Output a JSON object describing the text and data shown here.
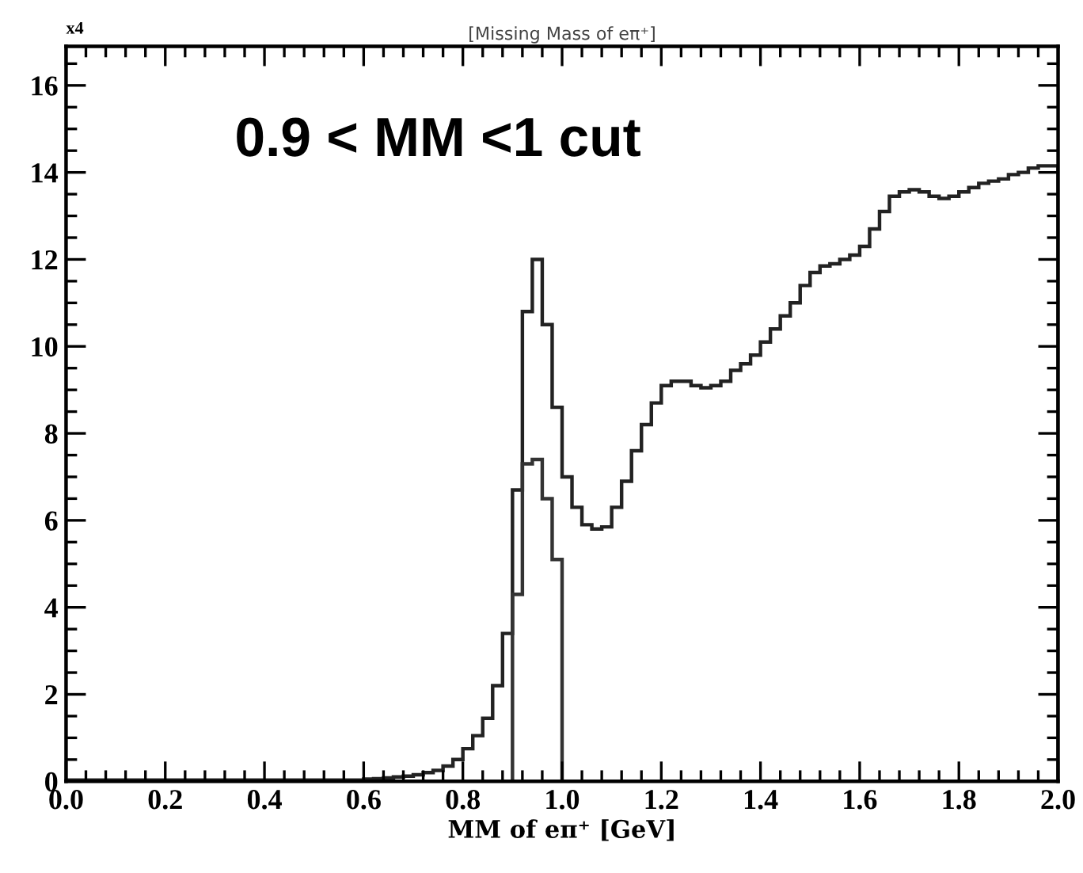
{
  "chart_data": {
    "type": "histogram",
    "title": "[Missing Mass of eπ⁺]",
    "xlabel": "MM of eπ⁺ [GeV]",
    "annotations": [
      "0.9 < MM <1 cut",
      "x4"
    ],
    "bins": [
      0.0,
      0.02,
      0.04,
      0.06,
      0.08,
      0.1,
      0.12,
      0.14,
      0.16,
      0.18,
      0.2,
      0.22,
      0.24,
      0.26,
      0.28,
      0.3,
      0.32,
      0.34,
      0.36,
      0.38,
      0.4,
      0.42,
      0.44,
      0.46,
      0.48,
      0.5,
      0.52,
      0.54,
      0.56,
      0.58,
      0.6,
      0.62,
      0.64,
      0.66,
      0.68,
      0.7,
      0.72,
      0.74,
      0.76,
      0.78,
      0.8,
      0.82,
      0.84,
      0.86,
      0.88,
      0.9,
      0.92,
      0.94,
      0.96,
      0.98,
      1.0,
      1.02,
      1.04,
      1.06,
      1.08,
      1.1,
      1.12,
      1.14,
      1.16,
      1.18,
      1.2,
      1.22,
      1.24,
      1.26,
      1.28,
      1.3,
      1.32,
      1.34,
      1.36,
      1.38,
      1.4,
      1.42,
      1.44,
      1.46,
      1.48,
      1.5,
      1.52,
      1.54,
      1.56,
      1.58,
      1.6,
      1.62,
      1.64,
      1.66,
      1.68,
      1.7,
      1.72,
      1.74,
      1.76,
      1.78,
      1.8,
      1.82,
      1.84,
      1.86,
      1.88,
      1.9,
      1.92,
      1.94,
      1.96,
      1.98,
      2.0
    ],
    "series": [
      {
        "color": "#222222",
        "values": [
          0.03,
          0.03,
          0.03,
          0.03,
          0.03,
          0.03,
          0.03,
          0.03,
          0.03,
          0.03,
          0.03,
          0.03,
          0.03,
          0.03,
          0.03,
          0.03,
          0.03,
          0.03,
          0.03,
          0.03,
          0.03,
          0.03,
          0.03,
          0.03,
          0.03,
          0.03,
          0.03,
          0.03,
          0.03,
          0.03,
          0.05,
          0.06,
          0.08,
          0.1,
          0.12,
          0.15,
          0.2,
          0.25,
          0.35,
          0.5,
          0.75,
          1.05,
          1.45,
          2.2,
          3.4,
          6.7,
          10.8,
          12.0,
          10.5,
          8.6,
          7.0,
          6.3,
          5.9,
          5.8,
          5.85,
          6.3,
          6.9,
          7.6,
          8.2,
          8.7,
          9.1,
          9.2,
          9.2,
          9.1,
          9.05,
          9.1,
          9.2,
          9.45,
          9.6,
          9.8,
          10.1,
          10.4,
          10.7,
          11.0,
          11.4,
          11.7,
          11.85,
          11.9,
          12.0,
          12.1,
          12.3,
          12.7,
          13.1,
          13.45,
          13.55,
          13.6,
          13.55,
          13.45,
          13.4,
          13.45,
          13.55,
          13.65,
          13.75,
          13.8,
          13.85,
          13.95,
          14.0,
          14.1,
          14.15,
          14.15
        ]
      },
      {
        "color": "#333333",
        "values": [
          0,
          0,
          0,
          0,
          0,
          0,
          0,
          0,
          0,
          0,
          0,
          0,
          0,
          0,
          0,
          0,
          0,
          0,
          0,
          0,
          0,
          0,
          0,
          0,
          0,
          0,
          0,
          0,
          0,
          0,
          0,
          0,
          0,
          0,
          0,
          0,
          0,
          0,
          0,
          0,
          0,
          0,
          0,
          0,
          0,
          4.3,
          7.3,
          7.4,
          6.5,
          5.1,
          0,
          0,
          0,
          0,
          0,
          0,
          0,
          0,
          0,
          0,
          0,
          0,
          0,
          0,
          0,
          0,
          0,
          0,
          0,
          0,
          0,
          0,
          0,
          0,
          0,
          0,
          0,
          0,
          0,
          0,
          0,
          0,
          0,
          0,
          0,
          0,
          0,
          0,
          0,
          0,
          0,
          0,
          0,
          0,
          0,
          0,
          0,
          0,
          0,
          0
        ]
      }
    ],
    "xlim": [
      0,
      2.0
    ],
    "ylim": [
      0,
      16.9
    ],
    "xticks": [
      {
        "value": 0,
        "label": "0.0"
      },
      0.2,
      0.4,
      0.6,
      0.8,
      {
        "value": 1,
        "label": "1.0"
      },
      1.2,
      1.4,
      1.6,
      1.8,
      {
        "value": 2,
        "label": "2.0"
      }
    ],
    "yticks": [
      0,
      2,
      4,
      6,
      8,
      10,
      12,
      14,
      16
    ],
    "grid": false,
    "legend": false
  }
}
